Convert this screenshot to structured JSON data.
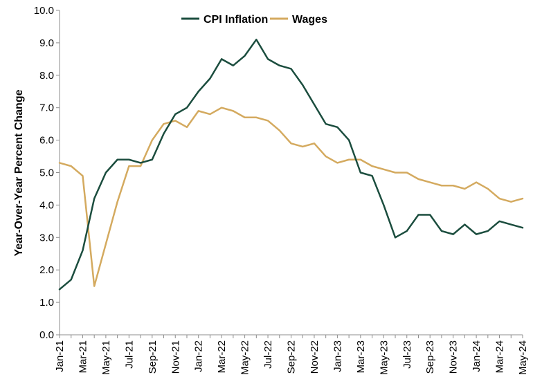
{
  "chart_data": {
    "type": "line",
    "title": "",
    "xlabel": "",
    "ylabel": "Year-Over-Year Percent Change",
    "ylim": [
      0,
      10
    ],
    "yticks": [
      "0.0",
      "1.0",
      "2.0",
      "3.0",
      "4.0",
      "5.0",
      "6.0",
      "7.0",
      "8.0",
      "9.0",
      "10.0"
    ],
    "x": [
      "Jan-21",
      "Feb-21",
      "Mar-21",
      "Apr-21",
      "May-21",
      "Jun-21",
      "Jul-21",
      "Aug-21",
      "Sep-21",
      "Oct-21",
      "Nov-21",
      "Dec-21",
      "Jan-22",
      "Feb-22",
      "Mar-22",
      "Apr-22",
      "May-22",
      "Jun-22",
      "Jul-22",
      "Aug-22",
      "Sep-22",
      "Oct-22",
      "Nov-22",
      "Dec-22",
      "Jan-23",
      "Feb-23",
      "Mar-23",
      "Apr-23",
      "May-23",
      "Jun-23",
      "Jul-23",
      "Aug-23",
      "Sep-23",
      "Oct-23",
      "Nov-23",
      "Dec-23",
      "Jan-24",
      "Feb-24",
      "Mar-24",
      "Apr-24",
      "May-24"
    ],
    "xtick_labels": [
      "Jan-21",
      "Mar-21",
      "May-21",
      "Jul-21",
      "Sep-21",
      "Nov-21",
      "Jan-22",
      "Mar-22",
      "May-22",
      "Jul-22",
      "Sep-22",
      "Nov-22",
      "Jan-23",
      "Mar-23",
      "May-23",
      "Jul-23",
      "Sep-23",
      "Nov-23",
      "Jan-24",
      "Mar-24",
      "May-24"
    ],
    "grid": false,
    "legend_position": "top-center",
    "series": [
      {
        "name": "CPI Inflation",
        "color": "#1b4d3e",
        "values": [
          1.4,
          1.7,
          2.6,
          4.2,
          5.0,
          5.4,
          5.4,
          5.3,
          5.4,
          6.2,
          6.8,
          7.0,
          7.5,
          7.9,
          8.5,
          8.3,
          8.6,
          9.1,
          8.5,
          8.3,
          8.2,
          7.7,
          7.1,
          6.5,
          6.4,
          6.0,
          5.0,
          4.9,
          4.0,
          3.0,
          3.2,
          3.7,
          3.7,
          3.2,
          3.1,
          3.4,
          3.1,
          3.2,
          3.5,
          3.4,
          3.3
        ]
      },
      {
        "name": "Wages",
        "color": "#d4aa5f",
        "values": [
          5.3,
          5.2,
          4.9,
          1.5,
          2.8,
          4.1,
          5.2,
          5.2,
          6.0,
          6.5,
          6.6,
          6.4,
          6.9,
          6.8,
          7.0,
          6.9,
          6.7,
          6.7,
          6.6,
          6.3,
          5.9,
          5.8,
          5.9,
          5.5,
          5.3,
          5.4,
          5.4,
          5.2,
          5.1,
          5.0,
          5.0,
          4.8,
          4.7,
          4.6,
          4.6,
          4.5,
          4.7,
          4.5,
          4.2,
          4.1,
          4.2
        ]
      }
    ]
  }
}
